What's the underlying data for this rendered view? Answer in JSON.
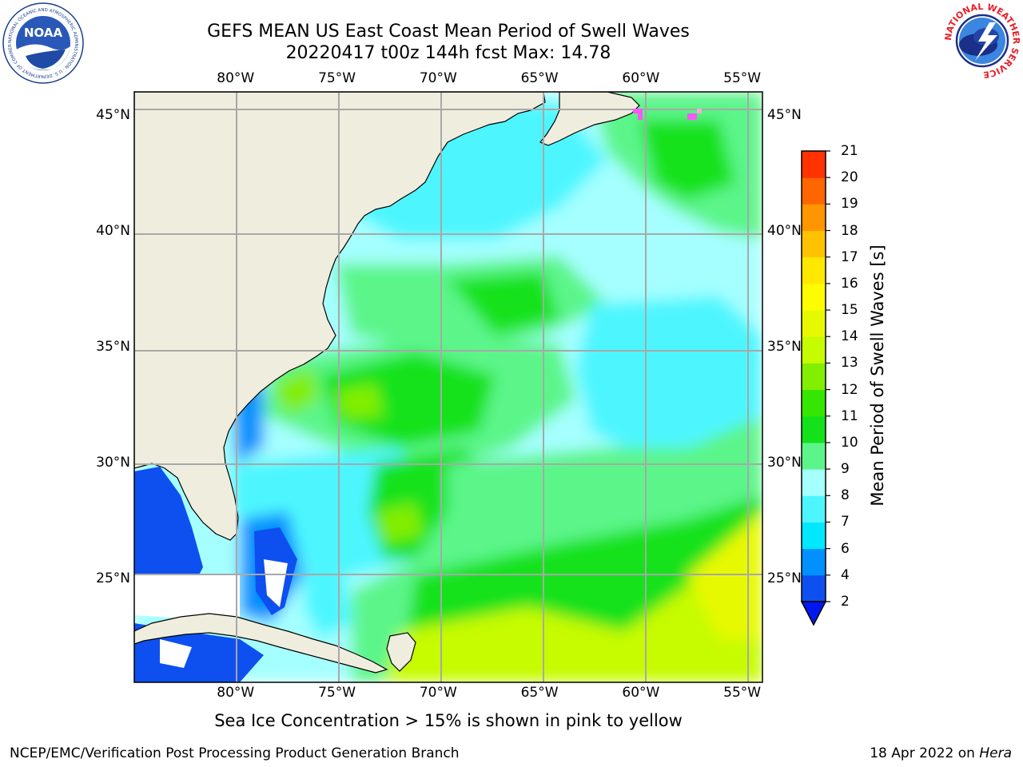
{
  "header": {
    "title_line1": "GEFS MEAN US East Coast Mean Period of Swell Waves",
    "title_line2": "20220417 t00z 144h fcst   Max: 14.78"
  },
  "logos": {
    "left": {
      "icon": "noaa-logo-icon",
      "text": "NOAA",
      "ring_text": "NATIONAL OCEANIC AND ATMOSPHERIC ADMINISTRATION · U.S. DEPARTMENT OF COMMERCE"
    },
    "right": {
      "icon": "nws-logo-icon",
      "ring_text": "NATIONAL WEATHER SERVICE"
    }
  },
  "map": {
    "lon_ticks": [
      "80°W",
      "75°W",
      "70°W",
      "65°W",
      "60°W",
      "55°W"
    ],
    "lon_values": [
      -80,
      -75,
      -70,
      -65,
      -60,
      -55
    ],
    "lat_ticks": [
      "45°N",
      "40°N",
      "35°N",
      "30°N",
      "25°N"
    ],
    "lat_values": [
      45,
      40,
      35,
      30,
      25
    ],
    "lon_range": [
      -85,
      -54
    ],
    "lat_range": [
      20.5,
      46
    ],
    "grid": true,
    "land_color": "#efedde",
    "ocean_color": "#ffffff",
    "gridline_color": "#a8a8a8"
  },
  "colorbar": {
    "title": "Mean Period of Swell Waves [s]",
    "labels": [
      "2",
      "4",
      "6",
      "7",
      "8",
      "9",
      "10",
      "11",
      "12",
      "13",
      "14",
      "15",
      "16",
      "17",
      "18",
      "19",
      "20",
      "21"
    ],
    "colors": [
      "#0e4ff0",
      "#0090ff",
      "#00e8ff",
      "#4df6ff",
      "#a5ffff",
      "#5cf58a",
      "#13e21a",
      "#35e600",
      "#82ee00",
      "#c6fb00",
      "#e7f900",
      "#fdfd00",
      "#ffe800",
      "#ffc200",
      "#ff9500",
      "#ff6600",
      "#ff3200",
      "#ff0000"
    ],
    "extend_color": "#0018f0",
    "extend": "min"
  },
  "footnote": "Sea Ice Concentration > 15% is shown in pink to yellow",
  "footer": {
    "left": "NCEP/EMC/Verification Post Processing Product Generation Branch",
    "right_prefix": "18 Apr 2022 on ",
    "right_machine": "Hera"
  }
}
